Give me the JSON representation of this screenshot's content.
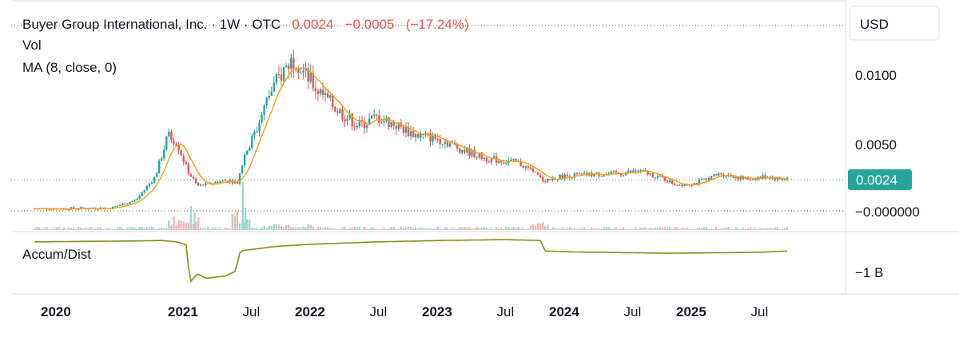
{
  "header": {
    "symbol": "Buyer Group International, Inc.",
    "interval": "1W",
    "exchange": "OTC",
    "last": "0.0024",
    "change": "−0.0005",
    "change_pct": "(−17.24%)",
    "vol_label": "Vol",
    "ma_label": "MA (8, close, 0)",
    "ad_label": "Accum/Dist"
  },
  "colors": {
    "up": "#26a69a",
    "down": "#ef5350",
    "ma": "#f7a21b",
    "ad": "#8a8a1a",
    "price_tag": "#26a69a"
  },
  "chart_data": {
    "type": "candlestick",
    "currency": "USD",
    "last_price_label": "0.0024",
    "y_ticks": [
      "0.0100",
      "0.0050",
      "−0.000000"
    ],
    "y_tick_values": [
      0.01,
      0.005,
      0.0
    ],
    "ad_tick_label": "−1 B",
    "x_ticks": [
      {
        "label": "2020",
        "bold": true,
        "t": 2020.0
      },
      {
        "label": "2021",
        "bold": true,
        "t": 2021.0
      },
      {
        "label": "Jul",
        "bold": false,
        "t": 2021.5
      },
      {
        "label": "2022",
        "bold": true,
        "t": 2022.0
      },
      {
        "label": "Jul",
        "bold": false,
        "t": 2022.5
      },
      {
        "label": "2023",
        "bold": true,
        "t": 2023.0
      },
      {
        "label": "Jul",
        "bold": false,
        "t": 2023.5
      },
      {
        "label": "2024",
        "bold": true,
        "t": 2024.0
      },
      {
        "label": "Jul",
        "bold": false,
        "t": 2024.5
      },
      {
        "label": "2025",
        "bold": true,
        "t": 2025.0
      },
      {
        "label": "Jul",
        "bold": false,
        "t": 2025.5
      }
    ],
    "price_path": [
      [
        2019.8,
        0.00015
      ],
      [
        2020.4,
        0.0002
      ],
      [
        2020.6,
        0.0008
      ],
      [
        2020.75,
        0.0025
      ],
      [
        2020.85,
        0.0055
      ],
      [
        2020.92,
        0.005
      ],
      [
        2021.0,
        0.003
      ],
      [
        2021.08,
        0.0018
      ],
      [
        2021.2,
        0.002
      ],
      [
        2021.3,
        0.0022
      ],
      [
        2021.4,
        0.0021
      ],
      [
        2021.45,
        0.004
      ],
      [
        2021.55,
        0.006
      ],
      [
        2021.65,
        0.0085
      ],
      [
        2021.78,
        0.0105
      ],
      [
        2021.85,
        0.0112
      ],
      [
        2021.92,
        0.01
      ],
      [
        2022.05,
        0.0085
      ],
      [
        2022.2,
        0.0072
      ],
      [
        2022.35,
        0.0062
      ],
      [
        2022.5,
        0.0068
      ],
      [
        2022.65,
        0.0062
      ],
      [
        2022.8,
        0.0055
      ],
      [
        2023.0,
        0.0052
      ],
      [
        2023.15,
        0.0045
      ],
      [
        2023.35,
        0.0038
      ],
      [
        2023.6,
        0.0035
      ],
      [
        2023.7,
        0.003
      ],
      [
        2023.8,
        0.0022
      ],
      [
        2023.95,
        0.0025
      ],
      [
        2024.1,
        0.0026
      ],
      [
        2024.4,
        0.0027
      ],
      [
        2024.55,
        0.0029
      ],
      [
        2024.7,
        0.0025
      ],
      [
        2024.85,
        0.0019
      ],
      [
        2025.0,
        0.002
      ],
      [
        2025.2,
        0.0027
      ],
      [
        2025.4,
        0.0023
      ],
      [
        2025.55,
        0.0025
      ],
      [
        2025.68,
        0.0023
      ],
      [
        2025.73,
        0.0024
      ]
    ],
    "ad_path": [
      [
        2019.8,
        -0.05
      ],
      [
        2020.6,
        -0.03
      ],
      [
        2020.8,
        -0.02
      ],
      [
        2020.92,
        -0.05
      ],
      [
        2021.0,
        -0.12
      ],
      [
        2021.02,
        -0.95
      ],
      [
        2021.08,
        -0.75
      ],
      [
        2021.15,
        -0.85
      ],
      [
        2021.3,
        -0.8
      ],
      [
        2021.38,
        -0.7
      ],
      [
        2021.42,
        -0.25
      ],
      [
        2021.5,
        -0.22
      ],
      [
        2021.7,
        -0.15
      ],
      [
        2022.0,
        -0.1
      ],
      [
        2022.5,
        -0.05
      ],
      [
        2023.0,
        -0.02
      ],
      [
        2023.5,
        0.0
      ],
      [
        2023.78,
        -0.02
      ],
      [
        2023.82,
        -0.25
      ],
      [
        2024.0,
        -0.27
      ],
      [
        2024.8,
        -0.3
      ],
      [
        2025.5,
        -0.28
      ],
      [
        2025.73,
        -0.25
      ]
    ]
  }
}
